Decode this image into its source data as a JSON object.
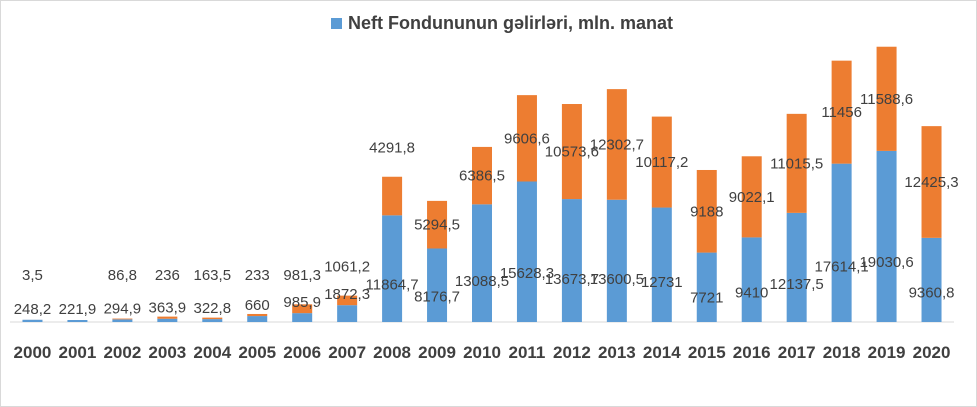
{
  "chart_data": {
    "type": "bar",
    "stacked": true,
    "legend": {
      "position": "top",
      "label": "Neft Fondununun gəlirləri, mln. manat"
    },
    "grid": false,
    "categories": [
      "2000",
      "2001",
      "2002",
      "2003",
      "2004",
      "2005",
      "2006",
      "2007",
      "2008",
      "2009",
      "2010",
      "2011",
      "2012",
      "2013",
      "2014",
      "2015",
      "2016",
      "2017",
      "2018",
      "2019",
      "2020"
    ],
    "series": [
      {
        "name": "Neft Fondununun gəlirləri, mln. manat",
        "color": "#5b9bd5",
        "values": [
          248.2,
          221.9,
          294.9,
          363.9,
          322.8,
          660,
          985.9,
          1872.3,
          11864.7,
          8176.7,
          13088.5,
          15628.3,
          13673.7,
          13600.5,
          12731,
          7721,
          9410,
          12137.5,
          17614.1,
          19030.6,
          9360.8
        ],
        "labels": [
          "248,2",
          "221,9",
          "294,9",
          "363,9",
          "322,8",
          "660",
          "985,9",
          "1872,3",
          "11864,7",
          "8176,7",
          "13088,5",
          "15628,3",
          "13673,7",
          "13600,5",
          "12731",
          "7721",
          "9410",
          "12137,5",
          "17614,1",
          "19030,6",
          "9360,8"
        ]
      },
      {
        "color": "#ed7d31",
        "values": [
          3.5,
          0,
          86.8,
          236,
          163.5,
          233,
          981.3,
          1061.2,
          4291.8,
          5294.5,
          6386.5,
          9606.6,
          10573.6,
          12302.7,
          10117.2,
          9188,
          9022.1,
          11015.5,
          11456,
          11588.6,
          12425.3
        ],
        "labels": [
          "3,5",
          "",
          "86,8",
          "236",
          "163,5",
          "233",
          "981,3",
          "1061,2",
          "4291,8",
          "5294,5",
          "6386,5",
          "9606,6",
          "10573,6",
          "12302,7",
          "10117,2",
          "9188",
          "9022,1",
          "11015,5",
          "11456",
          "11588,6",
          "12425,3"
        ]
      }
    ],
    "ylim": [
      0,
      30700
    ]
  }
}
